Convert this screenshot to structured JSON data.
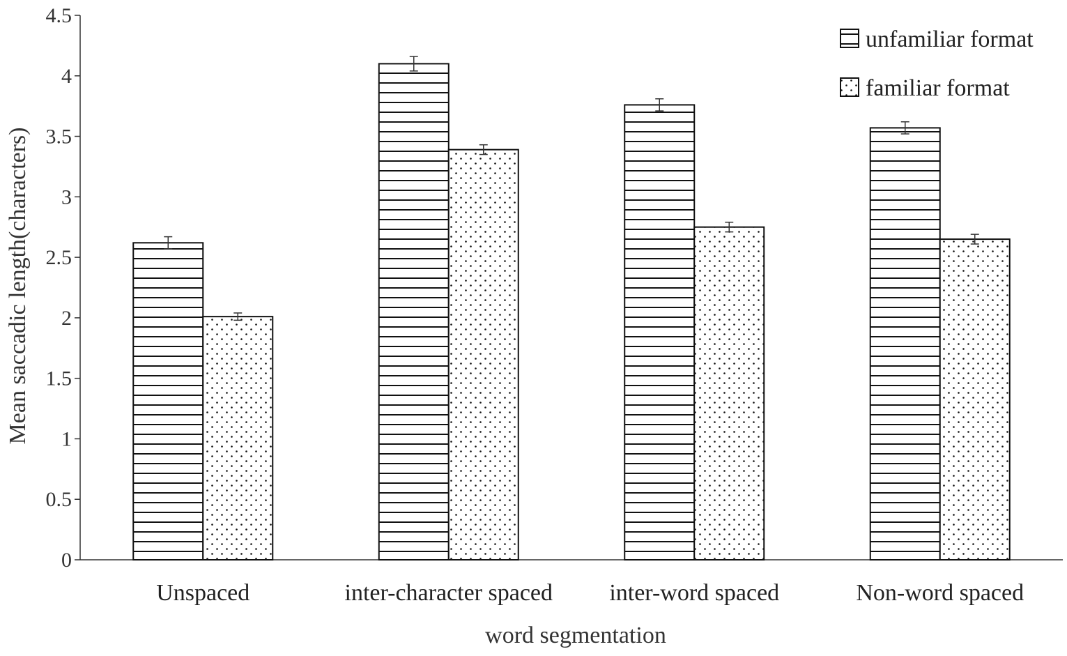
{
  "chart_data": {
    "type": "bar",
    "xlabel": "word segmentation",
    "ylabel": "Mean saccadic length(characters)",
    "ylim": [
      0,
      4.5
    ],
    "yticks": [
      "0",
      "0.5",
      "1",
      "1.5",
      "2",
      "2.5",
      "3",
      "3.5",
      "4",
      "4.5"
    ],
    "categories": [
      "Unspaced",
      "inter-character spaced",
      "inter-word spaced",
      "Non-word spaced"
    ],
    "series": [
      {
        "name": "unfamiliar format",
        "pattern": "horizontal-lines",
        "values": [
          2.62,
          4.1,
          3.76,
          3.57
        ],
        "errors": [
          0.05,
          0.06,
          0.05,
          0.05
        ]
      },
      {
        "name": "familiar format",
        "pattern": "dots",
        "values": [
          2.01,
          3.39,
          2.75,
          2.65
        ],
        "errors": [
          0.03,
          0.04,
          0.04,
          0.04
        ]
      }
    ],
    "grid": false,
    "legend": "top-right"
  }
}
